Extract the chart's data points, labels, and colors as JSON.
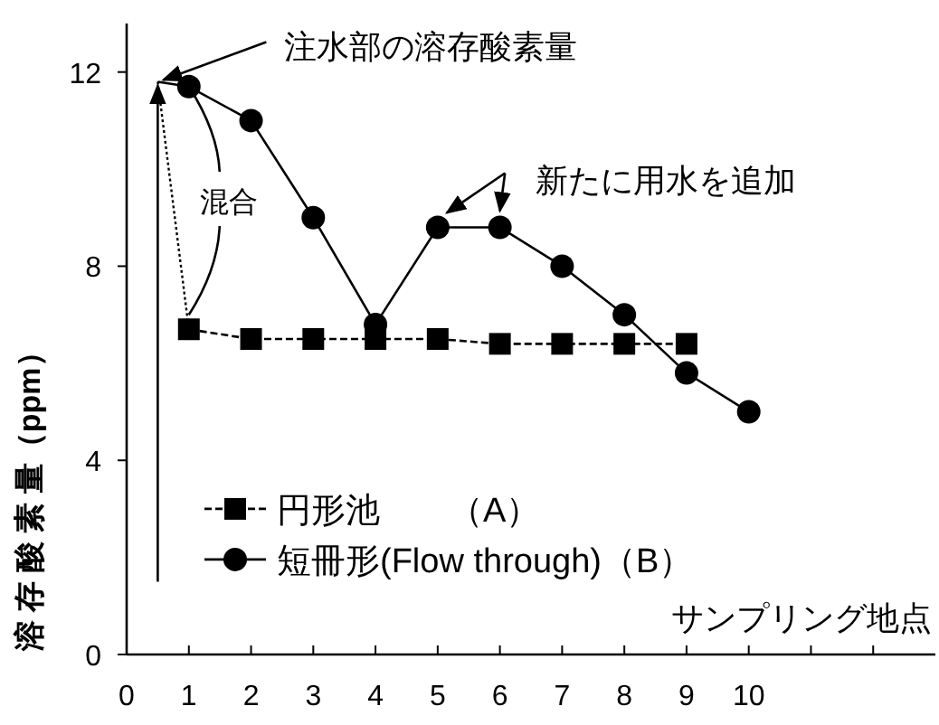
{
  "chart_data": {
    "type": "line",
    "ylabel": "溶 存 酸 素 量（ppm）",
    "xlabel": "サンプリング地点",
    "xlim": [
      0,
      13
    ],
    "ylim": [
      0,
      13
    ],
    "xticks": [
      0,
      1,
      2,
      3,
      4,
      5,
      6,
      7,
      8,
      9,
      10,
      {
        "value": 11,
        "label": null
      },
      {
        "value": 12,
        "label": null
      }
    ],
    "yticks": [
      0,
      4,
      8,
      12
    ],
    "grid": false,
    "legend": "bottom left",
    "series": [
      {
        "name": "円形池　　（A）",
        "color": "#000000",
        "marker": "square",
        "line_style": "dashed",
        "x": [
          1,
          2,
          3,
          4,
          5,
          6,
          7,
          8,
          9
        ],
        "values": [
          6.7,
          6.5,
          6.5,
          6.5,
          6.5,
          6.4,
          6.4,
          6.4,
          6.4
        ]
      },
      {
        "name": "短冊形(Flow through)（B）",
        "color": "#000000",
        "marker": "circle",
        "line_style": "solid",
        "x": [
          1,
          2,
          3,
          4,
          5,
          6,
          7,
          8,
          9,
          10
        ],
        "values": [
          11.7,
          11.0,
          9.0,
          6.8,
          8.8,
          8.8,
          8.0,
          7.0,
          5.8,
          5.0
        ]
      },
      {
        "color": "#000000",
        "marker": "none",
        "line_style": "dotted",
        "x": [
          0.5,
          1
        ],
        "values": [
          11.8,
          6.7
        ]
      },
      {
        "color": "#000000",
        "marker": "none",
        "line_style": "solid",
        "x": [
          0.5,
          1
        ],
        "values": [
          11.8,
          11.7
        ]
      }
    ],
    "annotations": [
      {
        "text": "注水部の溶存酸素量",
        "x": 0.5,
        "y": 11.8
      },
      {
        "text": "混合",
        "x": 1,
        "y": 11.7
      },
      {
        "text": "新たに用水を追加",
        "x": 5.5,
        "y": 8.8
      }
    ]
  }
}
